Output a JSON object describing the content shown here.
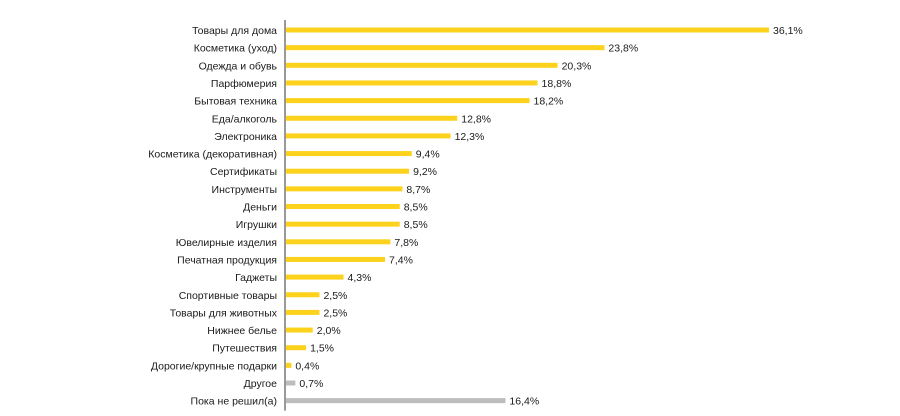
{
  "chart_data": {
    "type": "bar",
    "orientation": "horizontal",
    "categories": [
      "Товары для дома",
      "Косметика (уход)",
      "Одежда и обувь",
      "Парфюмерия",
      "Бытовая техника",
      "Еда/алкоголь",
      "Электроника",
      "Косметика (декоративная)",
      "Сертификаты",
      "Инструменты",
      "Деньги",
      "Игрушки",
      "Ювелирные изделия",
      "Печатная продукция",
      "Гаджеты",
      "Спортивные товары",
      "Товары для животных",
      "Нижнее белье",
      "Путешествия",
      "Дорогие/крупные подарки",
      "Другое",
      "Пока не решил(а)"
    ],
    "values": [
      36.1,
      23.8,
      20.3,
      18.8,
      18.2,
      12.8,
      12.3,
      9.4,
      9.2,
      8.7,
      8.5,
      8.5,
      7.8,
      7.4,
      4.3,
      2.5,
      2.5,
      2.0,
      1.5,
      0.4,
      0.7,
      16.4
    ],
    "value_labels": [
      "36,1%",
      "23,8%",
      "20,3%",
      "18,8%",
      "18,2%",
      "12,8%",
      "12,3%",
      "9,4%",
      "9,2%",
      "8,7%",
      "8,5%",
      "8,5%",
      "7,8%",
      "7,4%",
      "4,3%",
      "2,5%",
      "2,5%",
      "2,0%",
      "1,5%",
      "0,4%",
      "0,7%",
      "16,4%"
    ],
    "bar_colors": [
      "#fcd21c",
      "#fcd21c",
      "#fcd21c",
      "#fcd21c",
      "#fcd21c",
      "#fcd21c",
      "#fcd21c",
      "#fcd21c",
      "#fcd21c",
      "#fcd21c",
      "#fcd21c",
      "#fcd21c",
      "#fcd21c",
      "#fcd21c",
      "#fcd21c",
      "#fcd21c",
      "#fcd21c",
      "#fcd21c",
      "#fcd21c",
      "#fcd21c",
      "#bdbdbd",
      "#bdbdbd"
    ],
    "xlim": [
      0,
      36.1
    ],
    "grid": false,
    "axis_color": "#333333"
  }
}
